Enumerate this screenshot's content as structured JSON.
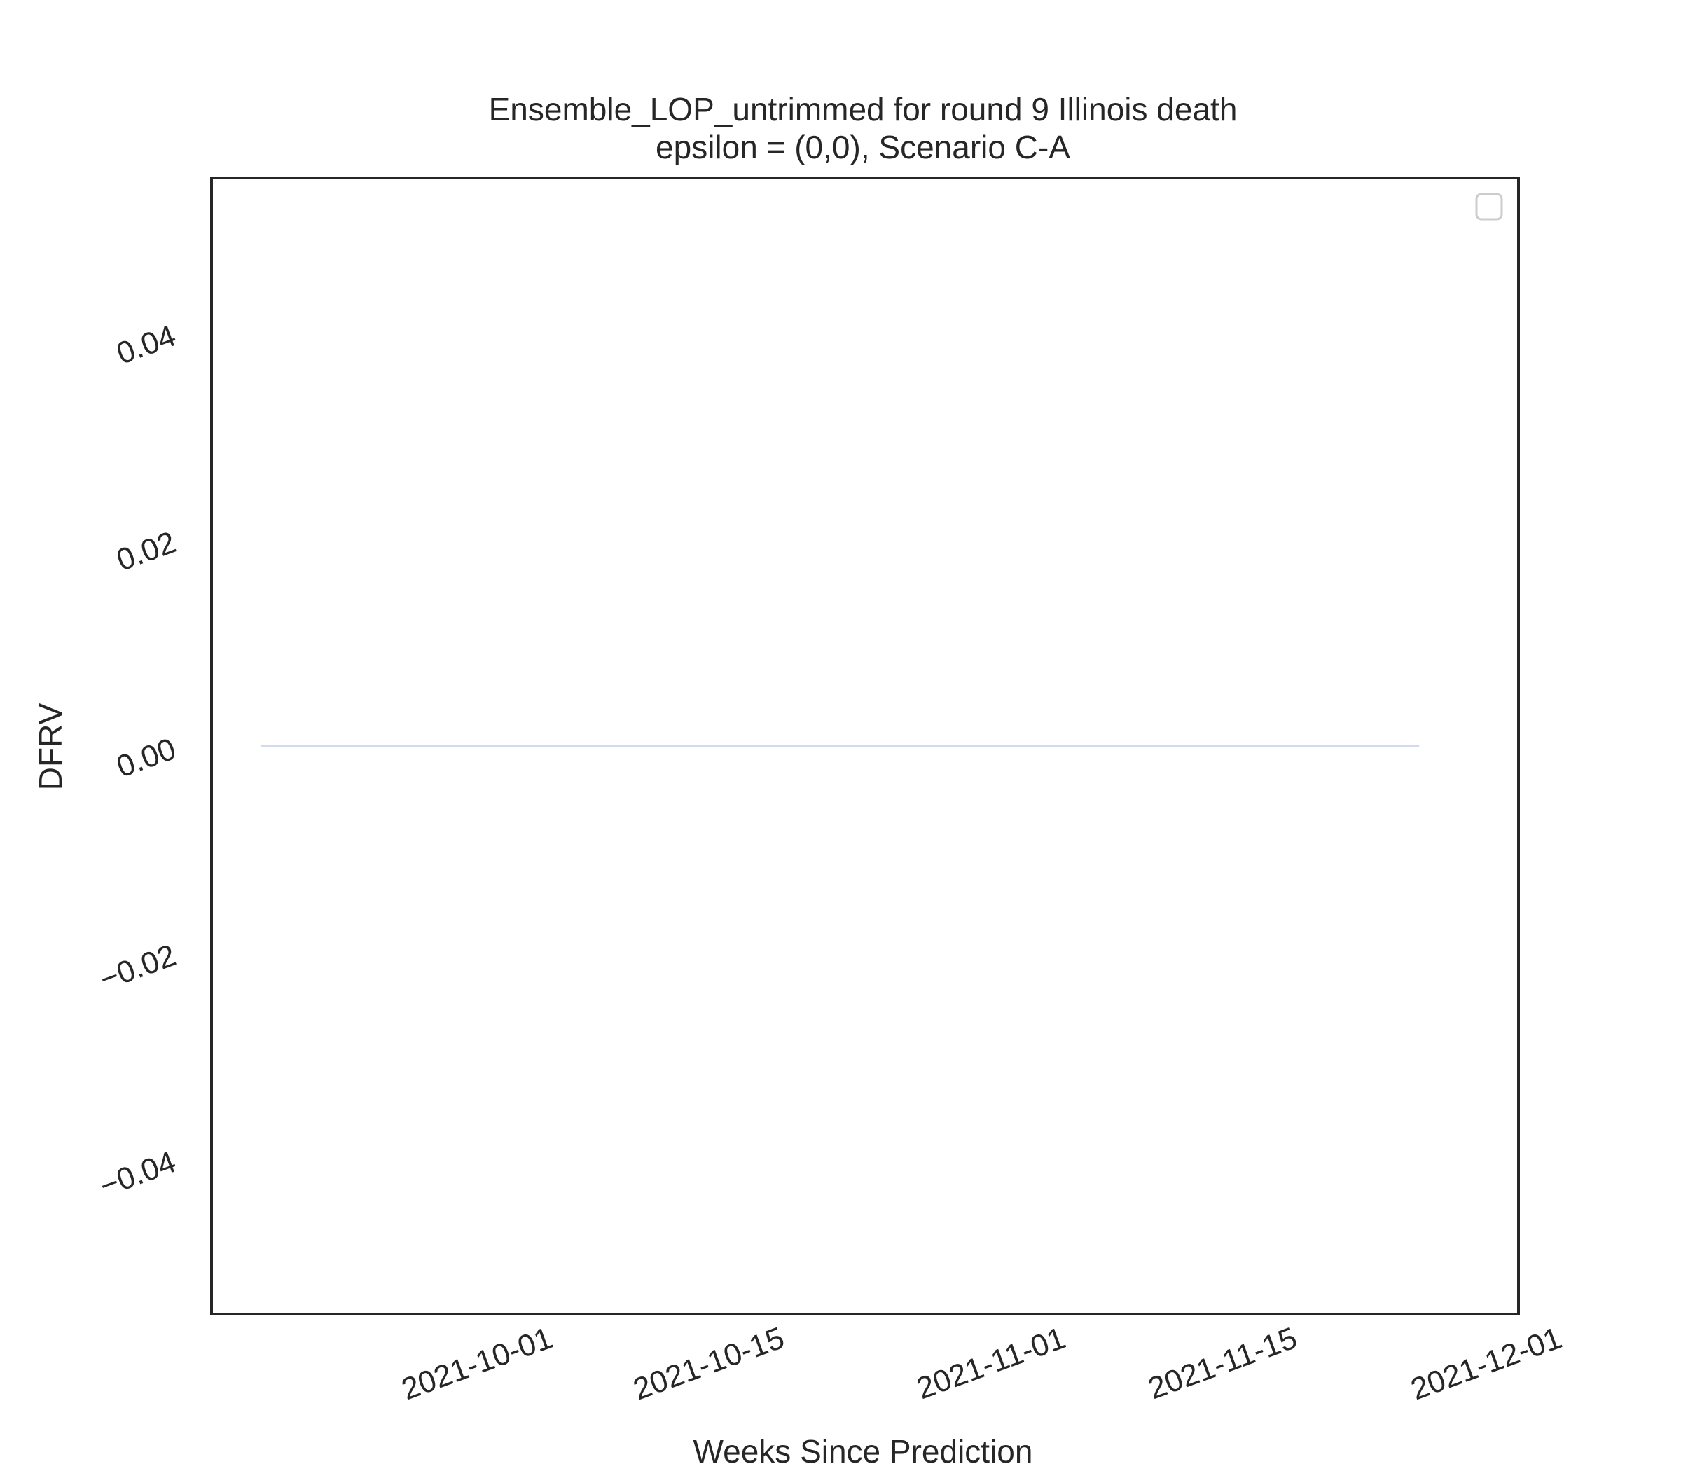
{
  "chart_data": {
    "type": "line",
    "title": "Ensemble_LOP_untrimmed for round 9 Illinois death",
    "subtitle": "epsilon = (0,0), Scenario C-A",
    "xlabel": "Weeks Since Prediction",
    "ylabel": "DFRV",
    "x_ticks": [
      "2021-10-01",
      "2021-10-15",
      "2021-11-01",
      "2021-11-15",
      "2021-12-01"
    ],
    "y_ticks": [
      "0.04",
      "0.02",
      "0.00",
      "−0.02",
      "−0.04"
    ],
    "y_tick_values": [
      0.04,
      0.02,
      0.0,
      -0.02,
      -0.04
    ],
    "ylim": [
      -0.055,
      0.055
    ],
    "xlim": [
      "2021-09-15",
      "2021-12-03"
    ],
    "grid": false,
    "legend": {
      "placement": "top-right",
      "entries": []
    },
    "series": [
      {
        "color": "#d2dbee",
        "points": [
          {
            "x": "2021-09-18",
            "y": 0
          },
          {
            "x": "2021-09-25",
            "y": 0
          },
          {
            "x": "2021-10-02",
            "y": 0
          },
          {
            "x": "2021-10-09",
            "y": 0
          },
          {
            "x": "2021-10-16",
            "y": 0
          },
          {
            "x": "2021-10-23",
            "y": 0
          },
          {
            "x": "2021-10-30",
            "y": 0
          },
          {
            "x": "2021-11-06",
            "y": 0
          },
          {
            "x": "2021-11-13",
            "y": 0
          },
          {
            "x": "2021-11-20",
            "y": 0
          },
          {
            "x": "2021-11-27",
            "y": 0
          }
        ]
      }
    ]
  }
}
